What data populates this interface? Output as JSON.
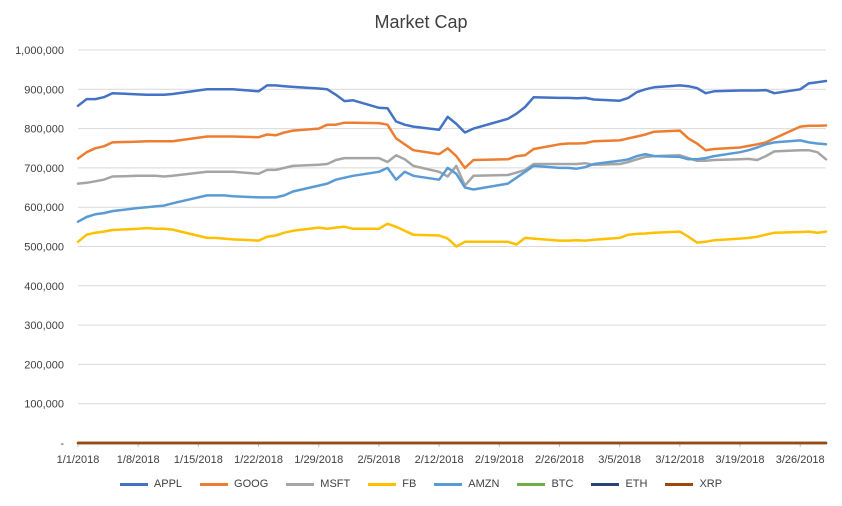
{
  "chart_data": {
    "type": "line",
    "title": "Market Cap",
    "xlabel": "",
    "ylabel": "",
    "ylim": [
      0,
      1000000
    ],
    "y_ticks": [
      "-",
      "100,000",
      "200,000",
      "300,000",
      "400,000",
      "500,000",
      "600,000",
      "700,000",
      "800,000",
      "900,000",
      "1,000,000"
    ],
    "y_tick_values": [
      0,
      100000,
      200000,
      300000,
      400000,
      500000,
      600000,
      700000,
      800000,
      900000,
      1000000
    ],
    "x_ticks": [
      "1/1/2018",
      "1/8/2018",
      "1/15/2018",
      "1/22/2018",
      "1/29/2018",
      "2/5/2018",
      "2/12/2018",
      "2/19/2018",
      "2/26/2018",
      "3/5/2018",
      "3/12/2018",
      "3/19/2018",
      "3/26/2018"
    ],
    "grid": true,
    "legend_position": "bottom",
    "x": [
      "1/1/2018",
      "1/2/2018",
      "1/3/2018",
      "1/4/2018",
      "1/5/2018",
      "1/8/2018",
      "1/9/2018",
      "1/10/2018",
      "1/11/2018",
      "1/12/2018",
      "1/16/2018",
      "1/17/2018",
      "1/18/2018",
      "1/19/2018",
      "1/22/2018",
      "1/23/2018",
      "1/24/2018",
      "1/25/2018",
      "1/26/2018",
      "1/29/2018",
      "1/30/2018",
      "1/31/2018",
      "2/1/2018",
      "2/2/2018",
      "2/5/2018",
      "2/6/2018",
      "2/7/2018",
      "2/8/2018",
      "2/9/2018",
      "2/12/2018",
      "2/13/2018",
      "2/14/2018",
      "2/15/2018",
      "2/16/2018",
      "2/20/2018",
      "2/21/2018",
      "2/22/2018",
      "2/23/2018",
      "2/26/2018",
      "2/27/2018",
      "2/28/2018",
      "3/1/2018",
      "3/2/2018",
      "3/5/2018",
      "3/6/2018",
      "3/7/2018",
      "3/8/2018",
      "3/9/2018",
      "3/12/2018",
      "3/13/2018",
      "3/14/2018",
      "3/15/2018",
      "3/16/2018",
      "3/19/2018",
      "3/20/2018",
      "3/21/2018",
      "3/22/2018",
      "3/23/2018",
      "3/26/2018",
      "3/27/2018",
      "3/28/2018",
      "3/29/2018"
    ],
    "series": [
      {
        "name": "APPL",
        "color": "#4472C4",
        "values": [
          858000,
          875000,
          875000,
          880000,
          890000,
          887000,
          886000,
          886000,
          886000,
          888000,
          900000,
          900000,
          900000,
          900000,
          895000,
          910000,
          910000,
          908000,
          906000,
          902000,
          900000,
          886000,
          870000,
          872000,
          853000,
          852000,
          818000,
          810000,
          805000,
          797000,
          830000,
          812000,
          790000,
          800000,
          825000,
          838000,
          855000,
          880000,
          878000,
          878000,
          877000,
          878000,
          874000,
          871000,
          878000,
          893000,
          900000,
          905000,
          910000,
          908000,
          903000,
          890000,
          895000,
          897000,
          897000,
          897000,
          898000,
          890000,
          900000,
          915000,
          918000,
          921000
        ]
      },
      {
        "name": "GOOG",
        "color": "#ED7D31",
        "values": [
          724000,
          740000,
          750000,
          755000,
          765000,
          767000,
          768000,
          768000,
          768000,
          768000,
          780000,
          780000,
          780000,
          780000,
          778000,
          785000,
          783000,
          790000,
          795000,
          800000,
          810000,
          810000,
          815000,
          815000,
          814000,
          810000,
          775000,
          760000,
          745000,
          735000,
          750000,
          730000,
          700000,
          720000,
          722000,
          730000,
          732000,
          748000,
          760000,
          762000,
          762000,
          763000,
          768000,
          770000,
          775000,
          780000,
          785000,
          792000,
          795000,
          775000,
          762000,
          745000,
          748000,
          752000,
          756000,
          760000,
          765000,
          775000,
          805000,
          807000,
          807000,
          808000
        ]
      },
      {
        "name": "MSFT",
        "color": "#A5A5A5",
        "values": [
          660000,
          662000,
          666000,
          670000,
          678000,
          680000,
          680000,
          680000,
          678000,
          680000,
          690000,
          690000,
          690000,
          690000,
          685000,
          695000,
          695000,
          700000,
          705000,
          708000,
          710000,
          720000,
          725000,
          725000,
          725000,
          715000,
          732000,
          722000,
          705000,
          690000,
          678000,
          705000,
          655000,
          680000,
          682000,
          688000,
          695000,
          710000,
          710000,
          710000,
          710000,
          712000,
          708000,
          710000,
          715000,
          722000,
          728000,
          730000,
          732000,
          725000,
          718000,
          718000,
          720000,
          722000,
          723000,
          720000,
          730000,
          742000,
          745000,
          745000,
          740000,
          722000
        ]
      },
      {
        "name": "FB",
        "color": "#FFC000",
        "values": [
          512000,
          530000,
          535000,
          538000,
          542000,
          545000,
          547000,
          545000,
          545000,
          543000,
          522000,
          522000,
          520000,
          518000,
          515000,
          525000,
          528000,
          535000,
          540000,
          548000,
          545000,
          548000,
          550000,
          545000,
          545000,
          558000,
          550000,
          540000,
          530000,
          528000,
          520000,
          500000,
          512000,
          512000,
          512000,
          505000,
          522000,
          520000,
          515000,
          515000,
          516000,
          515000,
          517000,
          522000,
          530000,
          532000,
          533000,
          535000,
          538000,
          525000,
          510000,
          512000,
          516000,
          520000,
          522000,
          525000,
          530000,
          535000,
          537000,
          538000,
          535000,
          538000
        ]
      },
      {
        "name": "AMZN",
        "color": "#5B9BD5",
        "values": [
          563000,
          575000,
          582000,
          585000,
          590000,
          598000,
          600000,
          602000,
          604000,
          610000,
          630000,
          630000,
          630000,
          628000,
          625000,
          625000,
          625000,
          630000,
          640000,
          655000,
          660000,
          670000,
          675000,
          680000,
          690000,
          700000,
          670000,
          690000,
          680000,
          670000,
          700000,
          685000,
          650000,
          645000,
          660000,
          675000,
          690000,
          705000,
          700000,
          700000,
          698000,
          702000,
          710000,
          718000,
          722000,
          730000,
          735000,
          730000,
          728000,
          722000,
          722000,
          725000,
          730000,
          740000,
          745000,
          752000,
          760000,
          765000,
          770000,
          765000,
          762000,
          760000
        ]
      },
      {
        "name": "BTC",
        "color": "#70AD47",
        "values": [
          0,
          0,
          0,
          0,
          0,
          0,
          0,
          0,
          0,
          0,
          0,
          0,
          0,
          0,
          0,
          0,
          0,
          0,
          0,
          0,
          0,
          0,
          0,
          0,
          0,
          0,
          0,
          0,
          0,
          0,
          0,
          0,
          0,
          0,
          0,
          0,
          0,
          0,
          0,
          0,
          0,
          0,
          0,
          0,
          0,
          0,
          0,
          0,
          0,
          0,
          0,
          0,
          0,
          0,
          0,
          0,
          0,
          0,
          0,
          0,
          0,
          0
        ]
      },
      {
        "name": "ETH",
        "color": "#264478",
        "values": [
          0,
          0,
          0,
          0,
          0,
          0,
          0,
          0,
          0,
          0,
          0,
          0,
          0,
          0,
          0,
          0,
          0,
          0,
          0,
          0,
          0,
          0,
          0,
          0,
          0,
          0,
          0,
          0,
          0,
          0,
          0,
          0,
          0,
          0,
          0,
          0,
          0,
          0,
          0,
          0,
          0,
          0,
          0,
          0,
          0,
          0,
          0,
          0,
          0,
          0,
          0,
          0,
          0,
          0,
          0,
          0,
          0,
          0,
          0,
          0,
          0,
          0
        ]
      },
      {
        "name": "XRP",
        "color": "#9E480E",
        "values": [
          0,
          0,
          0,
          0,
          0,
          0,
          0,
          0,
          0,
          0,
          0,
          0,
          0,
          0,
          0,
          0,
          0,
          0,
          0,
          0,
          0,
          0,
          0,
          0,
          0,
          0,
          0,
          0,
          0,
          0,
          0,
          0,
          0,
          0,
          0,
          0,
          0,
          0,
          0,
          0,
          0,
          0,
          0,
          0,
          0,
          0,
          0,
          0,
          0,
          0,
          0,
          0,
          0,
          0,
          0,
          0,
          0,
          0,
          0,
          0,
          0,
          0
        ]
      }
    ]
  }
}
